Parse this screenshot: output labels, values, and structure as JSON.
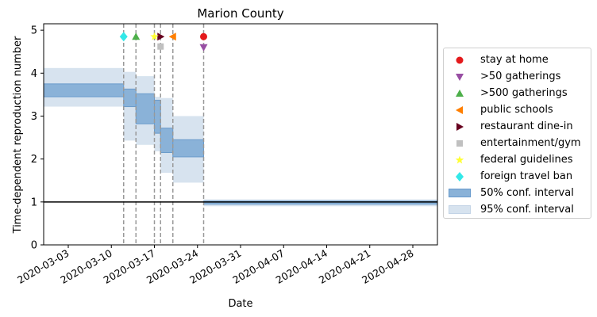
{
  "chart_data": {
    "type": "step-area",
    "title": "Marion County",
    "xlabel": "Date",
    "ylabel": "Time-dependent reproduction number",
    "xlim": [
      "2020-02-28",
      "2020-05-02"
    ],
    "ylim": [
      0,
      5.15
    ],
    "x_ticks": [
      "2020-03-03",
      "2020-03-10",
      "2020-03-17",
      "2020-03-24",
      "2020-03-31",
      "2020-04-07",
      "2020-04-14",
      "2020-04-21",
      "2020-04-28"
    ],
    "y_ticks": [
      0,
      1,
      2,
      3,
      4,
      5
    ],
    "reference_line": 1,
    "legend_position": "right",
    "ci95": [
      {
        "start": "2020-02-28",
        "end": "2020-03-12",
        "low": 3.22,
        "high": 4.12
      },
      {
        "start": "2020-03-12",
        "end": "2020-03-14",
        "low": 2.43,
        "high": 4.03
      },
      {
        "start": "2020-03-14",
        "end": "2020-03-17",
        "low": 2.33,
        "high": 3.93
      },
      {
        "start": "2020-03-17",
        "end": "2020-03-18",
        "low": 2.18,
        "high": 3.45
      },
      {
        "start": "2020-03-18",
        "end": "2020-03-20",
        "low": 1.68,
        "high": 3.42
      },
      {
        "start": "2020-03-20",
        "end": "2020-03-25",
        "low": 1.45,
        "high": 3.0
      },
      {
        "start": "2020-03-25",
        "end": "2020-05-02",
        "low": 0.9,
        "high": 1.06
      }
    ],
    "ci50": [
      {
        "start": "2020-02-28",
        "end": "2020-03-12",
        "low": 3.45,
        "high": 3.75
      },
      {
        "start": "2020-03-12",
        "end": "2020-03-14",
        "low": 3.22,
        "high": 3.63
      },
      {
        "start": "2020-03-14",
        "end": "2020-03-17",
        "low": 2.82,
        "high": 3.52
      },
      {
        "start": "2020-03-17",
        "end": "2020-03-18",
        "low": 2.6,
        "high": 3.37
      },
      {
        "start": "2020-03-18",
        "end": "2020-03-20",
        "low": 2.15,
        "high": 2.72
      },
      {
        "start": "2020-03-20",
        "end": "2020-03-25",
        "low": 2.05,
        "high": 2.45
      },
      {
        "start": "2020-03-25",
        "end": "2020-05-02",
        "low": 0.95,
        "high": 1.02
      }
    ],
    "interventions": [
      {
        "name": "stay at home",
        "date": "2020-03-25",
        "y": 4.85,
        "marker": "circle",
        "color": "#e41a1c"
      },
      {
        "name": ">50 gatherings",
        "date": "2020-03-25",
        "y": 4.6,
        "marker": "triangle-down",
        "color": "#984ea3"
      },
      {
        "name": ">500 gatherings",
        "date": "2020-03-14",
        "y": 4.85,
        "marker": "triangle-up",
        "color": "#4daf4a"
      },
      {
        "name": "public schools",
        "date": "2020-03-20",
        "y": 4.85,
        "marker": "triangle-left",
        "color": "#ff7f00"
      },
      {
        "name": "restaurant dine-in",
        "date": "2020-03-18",
        "y": 4.85,
        "marker": "triangle-right",
        "color": "#67001f"
      },
      {
        "name": "entertainment/gym",
        "date": "2020-03-18",
        "y": 4.62,
        "marker": "square",
        "color": "#c0c0c0"
      },
      {
        "name": "federal guidelines",
        "date": "2020-03-17",
        "y": 4.85,
        "marker": "star",
        "color": "#ffff33"
      },
      {
        "name": "foreign travel ban",
        "date": "2020-03-12",
        "y": 4.85,
        "marker": "diamond",
        "color": "#33e8e8"
      }
    ],
    "vlines": [
      "2020-03-12",
      "2020-03-14",
      "2020-03-17",
      "2020-03-18",
      "2020-03-20",
      "2020-03-25"
    ],
    "legend": [
      {
        "label": "stay at home",
        "marker": "circle",
        "color": "#e41a1c"
      },
      {
        "label": ">50 gatherings",
        "marker": "triangle-down",
        "color": "#984ea3"
      },
      {
        "label": ">500 gatherings",
        "marker": "triangle-up",
        "color": "#4daf4a"
      },
      {
        "label": "public schools",
        "marker": "triangle-left",
        "color": "#ff7f00"
      },
      {
        "label": "restaurant dine-in",
        "marker": "triangle-right",
        "color": "#67001f"
      },
      {
        "label": "entertainment/gym",
        "marker": "square",
        "color": "#c0c0c0"
      },
      {
        "label": "federal guidelines",
        "marker": "star",
        "color": "#ffff33"
      },
      {
        "label": "foreign travel ban",
        "marker": "diamond",
        "color": "#33e8e8"
      },
      {
        "label": "50% conf. interval",
        "marker": "patch",
        "color": "#8ab2d8",
        "edge": "#6699cc"
      },
      {
        "label": "95% conf. interval",
        "marker": "patch",
        "color": "#d7e3ef",
        "edge": "#c3d4e6"
      }
    ],
    "colors": {
      "ci50": "#8ab2d8",
      "ci50_edge": "#6a9bcb",
      "ci95": "#d7e3ef",
      "reference": "#000000",
      "vline": "#999999"
    }
  }
}
